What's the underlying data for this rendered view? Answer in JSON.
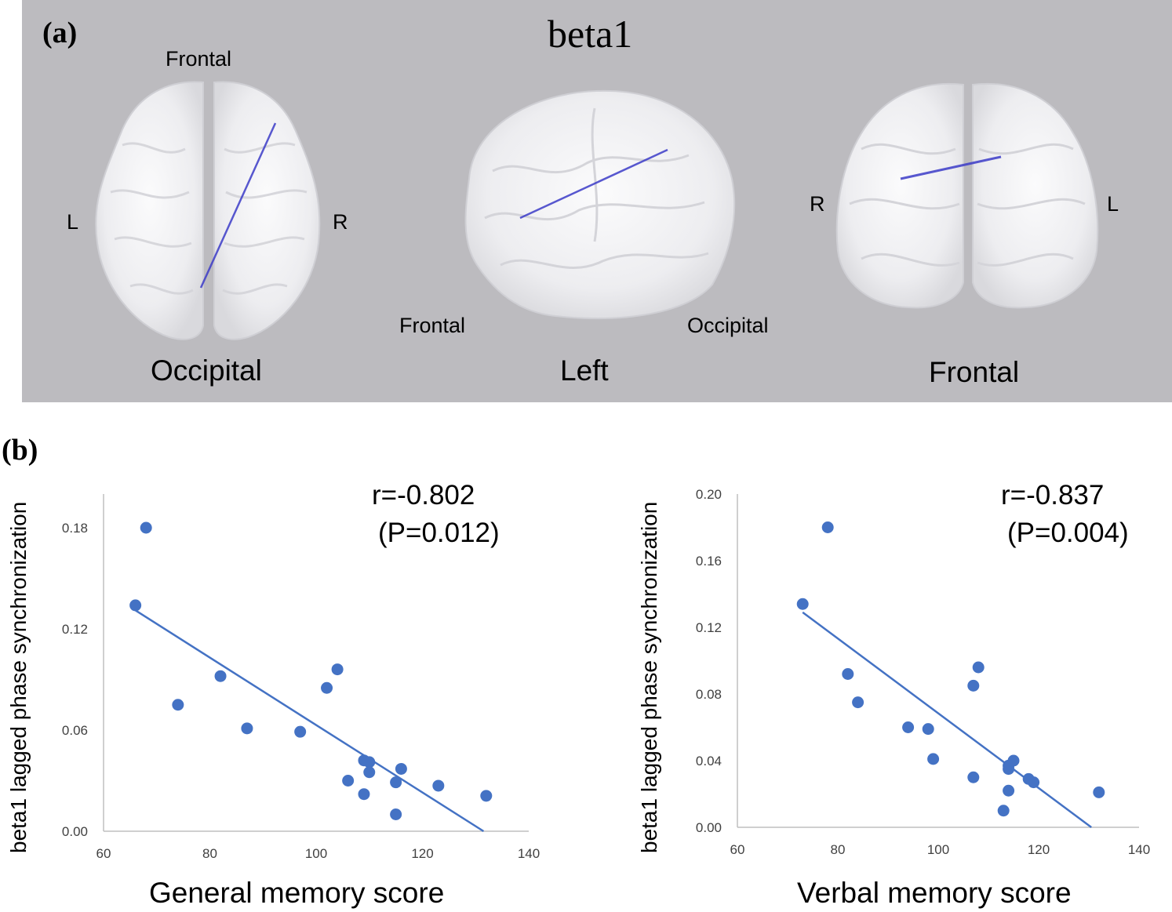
{
  "panel_a": {
    "label": "(a)",
    "title": "beta1",
    "views": [
      {
        "name": "Occipital",
        "top": "Frontal",
        "left": "L",
        "right": "R"
      },
      {
        "name": "Left",
        "left": "Frontal",
        "right": "Occipital"
      },
      {
        "name": "Frontal",
        "left": "R",
        "right": "L"
      }
    ]
  },
  "panel_b": {
    "label": "(b)"
  },
  "colors": {
    "background_a": "#bcbbbf",
    "brain": "#f2f2f4",
    "connection": "#3c3cc8",
    "points": "#4472c4",
    "trendline": "#4472c4"
  },
  "chart_data": [
    {
      "type": "scatter",
      "title": "",
      "xlabel": "General memory score",
      "ylabel": "beta1 lagged phase synchronization",
      "xlim": [
        60,
        140
      ],
      "ylim": [
        0,
        0.2
      ],
      "xticks": [
        "60",
        "80",
        "100",
        "120",
        "140"
      ],
      "yticks": [
        "0.00",
        "0.06",
        "0.12",
        "0.18"
      ],
      "annotation": {
        "r": "r=-0.802",
        "p": "(P=0.012)"
      },
      "points": [
        [
          68,
          0.18
        ],
        [
          66,
          0.134
        ],
        [
          74,
          0.075
        ],
        [
          82,
          0.092
        ],
        [
          87,
          0.061
        ],
        [
          97,
          0.059
        ],
        [
          102,
          0.085
        ],
        [
          104,
          0.096
        ],
        [
          106,
          0.03
        ],
        [
          109,
          0.022
        ],
        [
          109,
          0.042
        ],
        [
          110,
          0.041
        ],
        [
          110,
          0.035
        ],
        [
          115,
          0.01
        ],
        [
          115,
          0.029
        ],
        [
          116,
          0.037
        ],
        [
          123,
          0.027
        ],
        [
          132,
          0.021
        ]
      ],
      "trendline": {
        "x": [
          66,
          131.5
        ],
        "y": [
          0.131,
          0.0
        ]
      }
    },
    {
      "type": "scatter",
      "title": "",
      "xlabel": "Verbal memory score",
      "ylabel": "beta1 lagged phase synchronization",
      "xlim": [
        60,
        140
      ],
      "ylim": [
        0,
        0.2
      ],
      "xticks": [
        "60",
        "80",
        "100",
        "120",
        "140"
      ],
      "yticks": [
        "0.00",
        "0.04",
        "0.08",
        "0.12",
        "0.16",
        "0.20"
      ],
      "annotation": {
        "r": "r=-0.837",
        "p": "(P=0.004)"
      },
      "points": [
        [
          78,
          0.18
        ],
        [
          73,
          0.134
        ],
        [
          82,
          0.092
        ],
        [
          84,
          0.075
        ],
        [
          94,
          0.06
        ],
        [
          98,
          0.059
        ],
        [
          99,
          0.041
        ],
        [
          107,
          0.085
        ],
        [
          107,
          0.03
        ],
        [
          108,
          0.096
        ],
        [
          113,
          0.01
        ],
        [
          114,
          0.022
        ],
        [
          114,
          0.035
        ],
        [
          114,
          0.037
        ],
        [
          115,
          0.04
        ],
        [
          118,
          0.029
        ],
        [
          119,
          0.027
        ],
        [
          132,
          0.021
        ]
      ],
      "trendline": {
        "x": [
          73,
          130.5
        ],
        "y": [
          0.129,
          0.0
        ]
      }
    }
  ]
}
